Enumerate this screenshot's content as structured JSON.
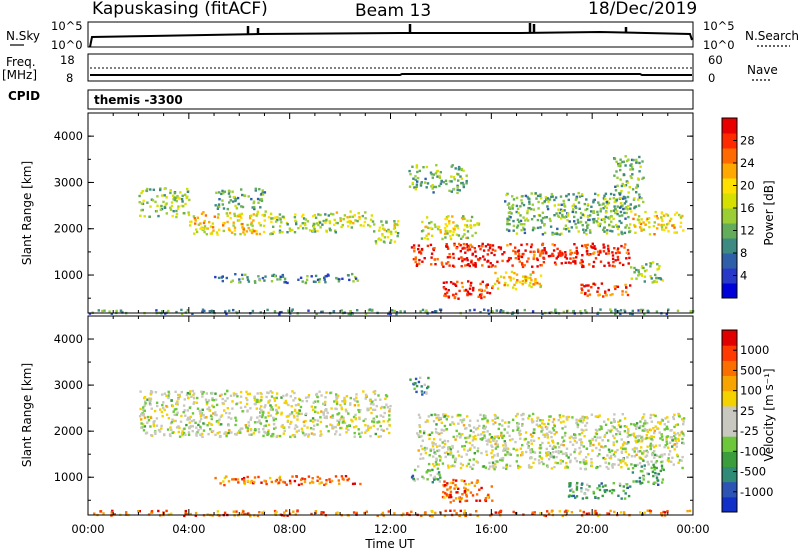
{
  "header": {
    "station": "Kapuskasing (fitACF)",
    "beam": "Beam 13",
    "date": "18/Dec/2019"
  },
  "top_panels": {
    "nsky_label": "N.Sky",
    "nsearch_label": "N.Search",
    "nsky_ticks": [
      "10^5",
      "10^0"
    ],
    "nsearch_ticks": [
      "10^5",
      "10^0"
    ],
    "freq_label": "Freq.",
    "freq_unit": "[MHz]",
    "freq_ticks": [
      "18",
      "8"
    ],
    "nave_label": "Nave",
    "nave_ticks": [
      "60",
      "0"
    ],
    "cpid_label": "CPID",
    "cpid_value": "themis -3300"
  },
  "chart_data": [
    {
      "type": "heatmap",
      "name": "power",
      "ylabel": "Slant Range [km]",
      "ylim": [
        180,
        4500
      ],
      "yticks": [
        "4000",
        "3000",
        "2000",
        "1000"
      ],
      "xlim_hours": [
        0,
        24
      ],
      "colorbar": {
        "label": "Power [dB]",
        "ticks": [
          "28",
          "24",
          "20",
          "16",
          "12",
          "8",
          "4"
        ],
        "colors": [
          "#0000d8",
          "#2838c8",
          "#2f5fa8",
          "#3d8a82",
          "#63ac5a",
          "#9bcd35",
          "#d6e000",
          "#ffe000",
          "#ffa800",
          "#ff6a00",
          "#ff2a00",
          "#e80000"
        ]
      },
      "regions": [
        {
          "t": [
            0.0,
            24.0
          ],
          "r": [
            180,
            280
          ],
          "level": 0.3
        },
        {
          "t": [
            2.0,
            4.0
          ],
          "r": [
            2280,
            2900
          ],
          "level": 0.45
        },
        {
          "t": [
            4.0,
            7.0
          ],
          "r": [
            1900,
            2400
          ],
          "level": 0.6
        },
        {
          "t": [
            5.0,
            7.0
          ],
          "r": [
            2450,
            2900
          ],
          "level": 0.35
        },
        {
          "t": [
            7.0,
            9.8
          ],
          "r": [
            1900,
            2350
          ],
          "level": 0.45
        },
        {
          "t": [
            9.8,
            11.3
          ],
          "r": [
            2050,
            2400
          ],
          "level": 0.55
        },
        {
          "t": [
            11.3,
            12.3
          ],
          "r": [
            1700,
            2200
          ],
          "level": 0.5
        },
        {
          "t": [
            5.0,
            10.8
          ],
          "r": [
            850,
            1050
          ],
          "level": 0.3
        },
        {
          "t": [
            12.8,
            21.5
          ],
          "r": [
            1200,
            1700
          ],
          "level": 0.92
        },
        {
          "t": [
            13.2,
            15.5
          ],
          "r": [
            1800,
            2300
          ],
          "level": 0.55
        },
        {
          "t": [
            14.0,
            16.0
          ],
          "r": [
            480,
            900
          ],
          "level": 0.9
        },
        {
          "t": [
            16.0,
            18.0
          ],
          "r": [
            700,
            1100
          ],
          "level": 0.65
        },
        {
          "t": [
            19.5,
            21.5
          ],
          "r": [
            560,
            850
          ],
          "level": 0.85
        },
        {
          "t": [
            21.5,
            22.8
          ],
          "r": [
            850,
            1300
          ],
          "level": 0.45
        },
        {
          "t": [
            21.5,
            23.6
          ],
          "r": [
            1900,
            2400
          ],
          "level": 0.6
        },
        {
          "t": [
            16.5,
            21.5
          ],
          "r": [
            1900,
            2800
          ],
          "level": 0.4
        },
        {
          "t": [
            12.7,
            15.0
          ],
          "r": [
            2800,
            3400
          ],
          "level": 0.4
        },
        {
          "t": [
            20.8,
            22.0
          ],
          "r": [
            2400,
            3600
          ],
          "level": 0.4
        }
      ]
    },
    {
      "type": "heatmap",
      "name": "velocity",
      "ylabel": "Slant Range [km]",
      "ylim": [
        180,
        4500
      ],
      "yticks": [
        "4000",
        "3000",
        "2000",
        "1000"
      ],
      "xlim_hours": [
        0,
        24
      ],
      "xticks": [
        "00:00",
        "04:00",
        "08:00",
        "12:00",
        "16:00",
        "20:00",
        "00:00"
      ],
      "xlabel": "Time UT",
      "colorbar": {
        "label": "Velocity [m s⁻¹]",
        "ticks": [
          "1000",
          "500",
          "100",
          "25",
          "-25",
          "-100",
          "-500",
          "-1000"
        ],
        "colors": [
          "#1030c8",
          "#2c54b4",
          "#2f8a76",
          "#3c9d3c",
          "#6cc83a",
          "#c8c8c0",
          "#c8c8c0",
          "#f4d200",
          "#f7a300",
          "#fb6f00",
          "#ff3a00",
          "#e00000"
        ]
      },
      "regions": [
        {
          "t": [
            0.0,
            24.0
          ],
          "r": [
            180,
            300
          ],
          "level": 0.78
        },
        {
          "t": [
            2.0,
            12.0
          ],
          "r": [
            1900,
            2900
          ],
          "level": 0.5
        },
        {
          "t": [
            13.0,
            23.6
          ],
          "r": [
            1200,
            2400
          ],
          "level": 0.5
        },
        {
          "t": [
            5.0,
            10.8
          ],
          "r": [
            850,
            1050
          ],
          "level": 0.8
        },
        {
          "t": [
            14.0,
            16.0
          ],
          "r": [
            480,
            1000
          ],
          "level": 0.82
        },
        {
          "t": [
            12.8,
            14.0
          ],
          "r": [
            900,
            1200
          ],
          "level": 0.3
        },
        {
          "t": [
            19.0,
            21.5
          ],
          "r": [
            560,
            900
          ],
          "level": 0.3
        },
        {
          "t": [
            12.7,
            13.5
          ],
          "r": [
            2800,
            3200
          ],
          "level": 0.3
        },
        {
          "t": [
            21.5,
            22.8
          ],
          "r": [
            850,
            1300
          ],
          "level": 0.3
        }
      ]
    }
  ]
}
